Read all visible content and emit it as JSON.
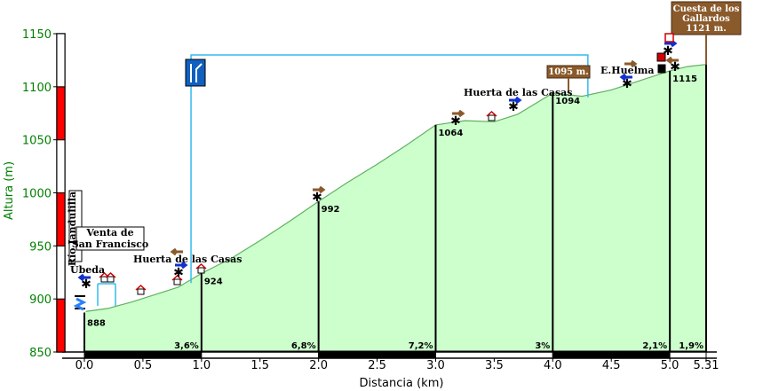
{
  "chart_data": {
    "type": "area",
    "xlabel": "Distancia (km)",
    "ylabel": "Altura (m)",
    "xlim": [
      0,
      5.31
    ],
    "ylim": [
      850,
      1150
    ],
    "x_ticks": [
      "0.0",
      "0.5",
      "1.0",
      "1.5",
      "2.0",
      "2.5",
      "3.0",
      "3.5",
      "4.0",
      "4.5",
      "5.0",
      "5.31"
    ],
    "y_ticks": [
      "850",
      "900",
      "950",
      "1000",
      "1050",
      "1100",
      "1150"
    ],
    "series": [
      {
        "x": [
          0.0,
          0.2,
          0.4,
          0.6,
          0.8,
          1.0,
          1.25,
          1.5,
          1.75,
          2.0,
          2.25,
          2.5,
          2.75,
          3.0,
          3.25,
          3.5,
          3.7,
          4.0,
          4.25,
          4.5,
          4.75,
          5.0,
          5.15,
          5.31
        ],
        "values": [
          888,
          891,
          897,
          904,
          911,
          924,
          938,
          955,
          973,
          992,
          1010,
          1027,
          1045,
          1064,
          1068,
          1067,
          1074,
          1094,
          1091,
          1097,
          1106,
          1115,
          1119,
          1121
        ]
      }
    ],
    "point_labels": [
      {
        "x": 0.0,
        "y": 888,
        "text": "888"
      },
      {
        "x": 1.0,
        "y": 924,
        "text": "924"
      },
      {
        "x": 2.0,
        "y": 992,
        "text": "992"
      },
      {
        "x": 3.0,
        "y": 1064,
        "text": "1064"
      },
      {
        "x": 4.0,
        "y": 1094,
        "text": "1094"
      },
      {
        "x": 5.0,
        "y": 1115,
        "text": "1115"
      }
    ],
    "grades": [
      {
        "from": 0.0,
        "to": 1.0,
        "text": "3,6%"
      },
      {
        "from": 1.0,
        "to": 2.0,
        "text": "6,8%"
      },
      {
        "from": 2.0,
        "to": 3.0,
        "text": "7,2%"
      },
      {
        "from": 3.0,
        "to": 4.0,
        "text": "3%"
      },
      {
        "from": 4.0,
        "to": 5.0,
        "text": "2,1%"
      },
      {
        "from": 5.0,
        "to": 5.31,
        "text": "1,9%"
      }
    ],
    "place_labels": [
      {
        "text": "Ubeda",
        "x": 0.0
      },
      {
        "text": "Huerta de las Casas",
        "x": 0.8
      },
      {
        "text": "Huerta de las Casas",
        "x": 3.7
      },
      {
        "text": "E.Huelma",
        "x": 4.6
      }
    ],
    "boxed_label": {
      "lines": [
        "Venta de",
        "San Francisco"
      ]
    },
    "river_label": "Río Jandulilla",
    "summit_sign": {
      "lines": [
        "Cuesta de los",
        "Gallardos",
        "1121 m."
      ]
    },
    "junction_sign": "1095 m.",
    "junction_bracket": {
      "from": 0.85,
      "to": 4.3
    },
    "colors": {
      "fill": "#ccffcc",
      "outline": "#60b060",
      "sign": "#8b5a2b",
      "bracket": "#33bbee",
      "axis_green": "#008000",
      "bar_red": "#ff0000"
    }
  }
}
